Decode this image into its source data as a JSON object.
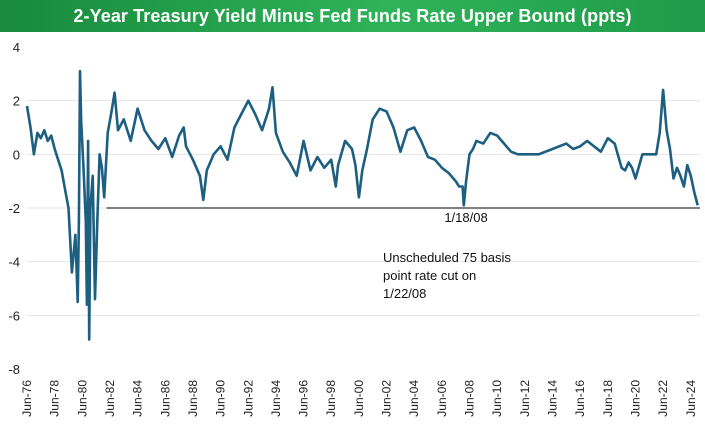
{
  "chart_data": {
    "type": "line",
    "title": "2-Year Treasury Yield Minus Fed Funds Rate Upper Bound (ppts)",
    "xlabel": "",
    "ylabel": "",
    "ylim": [
      -8,
      4
    ],
    "yticks": [
      4,
      2,
      0,
      -2,
      -4,
      -6,
      -8
    ],
    "xlim": [
      "1976-06",
      "2025-02"
    ],
    "xticks": [
      "Jun-76",
      "Jun-78",
      "Jun-80",
      "Jun-82",
      "Jun-84",
      "Jun-86",
      "Jun-88",
      "Jun-90",
      "Jun-92",
      "Jun-94",
      "Jun-96",
      "Jun-98",
      "Jun-00",
      "Jun-02",
      "Jun-04",
      "Jun-06",
      "Jun-08",
      "Jun-10",
      "Jun-12",
      "Jun-14",
      "Jun-16",
      "Jun-18",
      "Jun-20",
      "Jun-22",
      "Jun-24"
    ],
    "grid": "horizontal",
    "line_color": "#1d5f80",
    "series": [
      {
        "x": [
          "1976-06",
          "1976-09",
          "1976-12",
          "1977-03",
          "1977-06",
          "1977-09",
          "1977-12",
          "1978-03",
          "1978-06",
          "1978-09",
          "1978-12",
          "1979-03",
          "1979-06",
          "1979-09",
          "1979-12",
          "1980-02",
          "1980-03",
          "1980-04",
          "1980-05",
          "1980-07",
          "1980-09",
          "1980-10",
          "1980-11",
          "1980-12",
          "1981-01",
          "1981-03",
          "1981-05",
          "1981-07",
          "1981-09",
          "1981-11",
          "1982-01",
          "1982-04",
          "1982-07",
          "1982-10",
          "1983-01",
          "1983-06",
          "1983-12",
          "1984-06",
          "1984-12",
          "1985-06",
          "1985-12",
          "1986-06",
          "1986-12",
          "1987-06",
          "1987-10",
          "1987-12",
          "1988-06",
          "1988-12",
          "1989-03",
          "1989-06",
          "1989-12",
          "1990-06",
          "1990-12",
          "1991-06",
          "1991-12",
          "1992-06",
          "1992-12",
          "1993-06",
          "1993-12",
          "1994-03",
          "1994-06",
          "1994-12",
          "1995-06",
          "1995-12",
          "1996-06",
          "1996-12",
          "1997-06",
          "1997-12",
          "1998-06",
          "1998-10",
          "1998-12",
          "1999-06",
          "1999-12",
          "2000-03",
          "2000-06",
          "2000-09",
          "2001-01",
          "2001-06",
          "2001-12",
          "2002-06",
          "2002-12",
          "2003-06",
          "2003-12",
          "2004-06",
          "2004-12",
          "2005-06",
          "2005-12",
          "2006-06",
          "2006-12",
          "2007-06",
          "2007-09",
          "2007-12",
          "2008-01",
          "2008-03",
          "2008-06",
          "2008-09",
          "2008-12",
          "2009-06",
          "2009-12",
          "2010-06",
          "2010-12",
          "2011-06",
          "2011-12",
          "2012-06",
          "2013-06",
          "2014-06",
          "2015-06",
          "2015-12",
          "2016-06",
          "2016-12",
          "2017-06",
          "2017-12",
          "2018-06",
          "2018-12",
          "2019-06",
          "2019-09",
          "2019-12",
          "2020-03",
          "2020-06",
          "2020-12",
          "2021-06",
          "2021-12",
          "2022-03",
          "2022-06",
          "2022-09",
          "2022-12",
          "2023-03",
          "2023-06",
          "2023-09",
          "2023-12",
          "2024-03",
          "2024-06",
          "2024-09",
          "2024-12"
        ],
        "values": [
          1.8,
          1.0,
          0.0,
          0.8,
          0.6,
          0.9,
          0.5,
          0.7,
          0.2,
          -0.2,
          -0.6,
          -1.3,
          -2.0,
          -4.4,
          -3.0,
          -5.5,
          -2.5,
          3.1,
          1.2,
          -0.5,
          -2.5,
          -5.6,
          0.5,
          -6.9,
          -2.0,
          -0.8,
          -5.4,
          -2.5,
          0.0,
          -0.5,
          -1.6,
          0.8,
          1.5,
          2.3,
          0.9,
          1.3,
          0.5,
          1.7,
          0.9,
          0.5,
          0.2,
          0.6,
          -0.1,
          0.7,
          1.0,
          0.3,
          -0.2,
          -0.8,
          -1.7,
          -0.6,
          0.0,
          0.3,
          -0.2,
          1.0,
          1.5,
          2.0,
          1.5,
          0.9,
          1.7,
          2.5,
          0.8,
          0.1,
          -0.3,
          -0.8,
          0.5,
          -0.6,
          -0.1,
          -0.5,
          -0.2,
          -1.2,
          -0.4,
          0.5,
          0.2,
          -0.4,
          -1.6,
          -0.6,
          0.2,
          1.3,
          1.7,
          1.6,
          1.0,
          0.1,
          0.9,
          1.0,
          0.5,
          -0.1,
          -0.2,
          -0.5,
          -0.7,
          -1.0,
          -1.2,
          -1.2,
          -1.9,
          -1.0,
          0.0,
          0.2,
          0.5,
          0.4,
          0.8,
          0.7,
          0.4,
          0.1,
          0.0,
          0.0,
          0.0,
          0.2,
          0.4,
          0.2,
          0.3,
          0.5,
          0.3,
          0.1,
          0.6,
          0.4,
          -0.5,
          -0.6,
          -0.3,
          -0.5,
          -0.9,
          0.0,
          0.0,
          0.0,
          0.8,
          2.4,
          0.9,
          0.2,
          -0.9,
          -0.5,
          -0.8,
          -1.2,
          -0.4,
          -0.8,
          -1.4,
          -1.9
        ]
      }
    ],
    "reference_line": {
      "y": -2,
      "x_from": "1982-03",
      "x_to": "2025-02",
      "color": "#000000"
    },
    "annotations": {
      "date_label": "1/18/08",
      "note_line1": "Unscheduled 75 basis",
      "note_line2": "point rate cut on",
      "note_line3": "1/22/08"
    }
  }
}
